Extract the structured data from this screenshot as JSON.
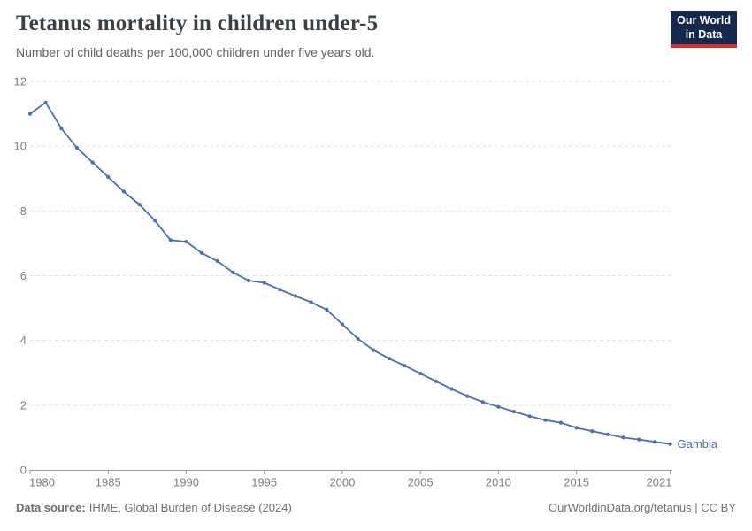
{
  "header": {
    "logo": {
      "line1": "Our World",
      "line2": "in Data"
    }
  },
  "footer": {
    "source_label": "Data source:",
    "source_text": "IHME, Global Burden of Disease (2024)",
    "right_text": "OurWorldinData.org/tetanus | CC BY"
  },
  "colors": {
    "accent_line": "#4d6ea9",
    "logo_bg": "#14294d",
    "logo_bar": "#d13239",
    "grid": "#e2e2e2",
    "axis": "#9a9a9a",
    "tick_label": "#7d7d7d",
    "title_text": "#3b4045",
    "muted_text": "#6e6e6e"
  },
  "chart_data": {
    "type": "line",
    "title": "Tetanus mortality in children under-5",
    "subtitle": "Number of child deaths per 100,000 children under five years old.",
    "xlabel": "",
    "ylabel": "",
    "xlim": [
      1980,
      2021
    ],
    "ylim": [
      0,
      12
    ],
    "x_ticks": [
      1980,
      1985,
      1990,
      1995,
      2000,
      2005,
      2010,
      2015,
      2021
    ],
    "y_ticks": [
      0,
      2,
      4,
      6,
      8,
      10,
      12
    ],
    "grid": "horizontal-dashed",
    "legend": "inline-end-label",
    "series": [
      {
        "name": "Gambia",
        "color": "#4d6ea9",
        "x": [
          1980,
          1981,
          1982,
          1983,
          1984,
          1985,
          1986,
          1987,
          1988,
          1989,
          1990,
          1991,
          1992,
          1993,
          1994,
          1995,
          1996,
          1997,
          1998,
          1999,
          2000,
          2001,
          2002,
          2003,
          2004,
          2005,
          2006,
          2007,
          2008,
          2009,
          2010,
          2011,
          2012,
          2013,
          2014,
          2015,
          2016,
          2017,
          2018,
          2019,
          2020,
          2021
        ],
        "values": [
          11.0,
          11.35,
          10.55,
          9.95,
          9.5,
          9.05,
          8.6,
          8.2,
          7.7,
          7.1,
          7.05,
          6.7,
          6.45,
          6.1,
          5.85,
          5.78,
          5.57,
          5.37,
          5.18,
          4.95,
          4.5,
          4.05,
          3.7,
          3.44,
          3.22,
          2.98,
          2.74,
          2.5,
          2.28,
          2.1,
          1.95,
          1.8,
          1.66,
          1.54,
          1.46,
          1.3,
          1.2,
          1.1,
          1.0,
          0.94,
          0.87,
          0.8
        ]
      }
    ]
  }
}
